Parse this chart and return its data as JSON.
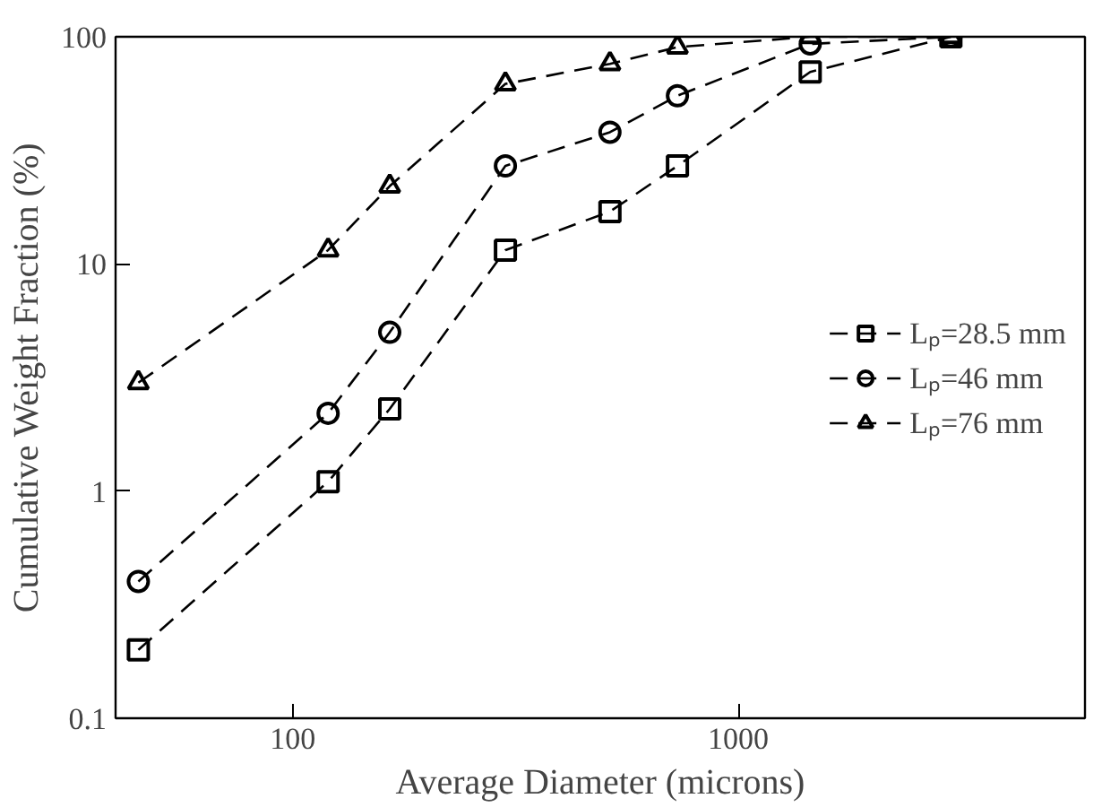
{
  "chart_data": {
    "type": "line",
    "xlabel": "Average Diameter (microns)",
    "ylabel": "Cumulative Weight Fraction (%)",
    "x": [
      45,
      120,
      165,
      300,
      515,
      730,
      1450,
      3000
    ],
    "series": [
      {
        "name": "Lₚ=28.5 mm",
        "color": "#000000",
        "marker": "square",
        "line_style": "dashed",
        "values": [
          0.2,
          1.1,
          2.3,
          11.5,
          17,
          27,
          70,
          100
        ]
      },
      {
        "name": "Lₚ=46 mm",
        "color": "#000000",
        "marker": "circle",
        "line_style": "dashed",
        "values": [
          0.4,
          2.2,
          5,
          27,
          38,
          55,
          93,
          100
        ]
      },
      {
        "name": "Lₚ=76 mm",
        "color": "#000000",
        "marker": "triangle",
        "line_style": "dashed",
        "values": [
          3,
          11.5,
          22,
          62,
          76,
          90,
          100,
          100
        ]
      }
    ],
    "log": "xy",
    "xlim": [
      40,
      6000
    ],
    "ylim": [
      0.1,
      100
    ],
    "xticks": [
      100,
      1000
    ],
    "yticks": [
      0.1,
      1,
      10,
      100
    ],
    "grid": false,
    "legend": "right"
  }
}
